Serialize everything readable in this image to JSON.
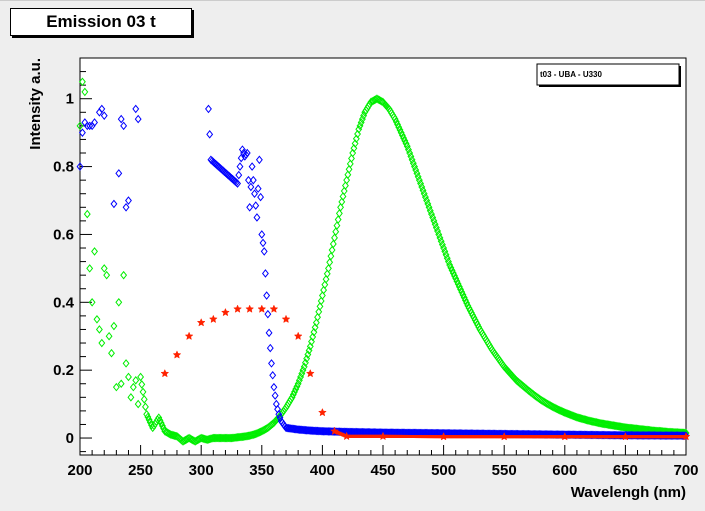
{
  "title": "Emission 03 t",
  "legend": {
    "text": "t03 - UBA - U330"
  },
  "colors": {
    "green": "#00ee00",
    "blue": "#0000ff",
    "red": "#ff2200",
    "background": "#eeeeee",
    "plot_bg": "#ffffff"
  },
  "chart_data": {
    "type": "scatter",
    "title": "Emission 03 t",
    "xlabel": "Wavelengh (nm)",
    "ylabel": "Intensity a.u.",
    "xlim": [
      200,
      700
    ],
    "ylim": [
      -0.05,
      1.12
    ],
    "x_ticks": [
      200,
      250,
      300,
      350,
      400,
      450,
      500,
      550,
      600,
      650,
      700
    ],
    "x_tick_labels": [
      "200",
      "250",
      "300",
      "350",
      "400",
      "450",
      "500",
      "550",
      "600",
      "650",
      "700"
    ],
    "y_ticks": [
      0,
      0.2,
      0.4,
      0.6,
      0.8,
      1.0
    ],
    "y_tick_labels": [
      "0",
      "0.2",
      "0.4",
      "0.6",
      "0.8",
      "1"
    ],
    "legend_placement": "top-right",
    "series": [
      {
        "name": "t03 - UBA - U330",
        "color": "#00ee00",
        "marker": "diamond",
        "x": [
          200,
          202,
          204,
          206,
          208,
          210,
          212,
          214,
          216,
          218,
          220,
          222,
          224,
          226,
          228,
          230,
          232,
          234,
          236,
          238,
          240,
          242,
          244,
          246,
          248,
          250,
          255,
          260,
          265,
          270,
          275,
          280,
          285,
          290,
          295,
          300,
          305,
          310,
          315,
          320,
          325,
          330,
          335,
          340,
          345,
          350,
          355,
          360,
          365,
          370,
          375,
          380,
          385,
          390,
          395,
          400,
          405,
          410,
          415,
          420,
          425,
          430,
          435,
          440,
          445,
          450,
          455,
          460,
          465,
          470,
          475,
          480,
          485,
          490,
          495,
          500,
          505,
          510,
          515,
          520,
          525,
          530,
          535,
          540,
          545,
          550,
          555,
          560,
          565,
          570,
          575,
          580,
          585,
          590,
          595,
          600,
          605,
          610,
          615,
          620,
          625,
          630,
          635,
          640,
          645,
          650,
          655,
          660,
          665,
          670,
          675,
          680,
          685,
          690,
          695,
          700
        ],
        "y": [
          0.92,
          1.05,
          1.02,
          0.66,
          0.5,
          0.4,
          0.55,
          0.35,
          0.32,
          0.28,
          0.5,
          0.48,
          0.3,
          0.25,
          0.33,
          0.15,
          0.4,
          0.16,
          0.48,
          0.22,
          0.18,
          0.12,
          0.15,
          0.17,
          0.1,
          0.18,
          0.07,
          0.03,
          0.06,
          0.02,
          0.01,
          0.005,
          -0.01,
          0.0,
          -0.01,
          0.0,
          -0.005,
          0.0,
          0.0,
          0.0,
          0.0,
          0.002,
          0.004,
          0.007,
          0.012,
          0.02,
          0.03,
          0.045,
          0.065,
          0.09,
          0.12,
          0.16,
          0.21,
          0.27,
          0.34,
          0.42,
          0.5,
          0.59,
          0.68,
          0.76,
          0.84,
          0.91,
          0.96,
          0.99,
          1.0,
          0.99,
          0.97,
          0.94,
          0.9,
          0.86,
          0.81,
          0.76,
          0.71,
          0.66,
          0.61,
          0.56,
          0.51,
          0.47,
          0.43,
          0.39,
          0.355,
          0.32,
          0.29,
          0.26,
          0.235,
          0.21,
          0.19,
          0.17,
          0.155,
          0.14,
          0.126,
          0.113,
          0.102,
          0.092,
          0.083,
          0.075,
          0.068,
          0.061,
          0.056,
          0.051,
          0.047,
          0.043,
          0.04,
          0.037,
          0.034,
          0.031,
          0.029,
          0.027,
          0.025,
          0.023,
          0.021,
          0.02,
          0.018,
          0.017,
          0.016,
          0.015
        ]
      },
      {
        "name": "",
        "color": "#0000ff",
        "marker": "diamond",
        "x": [
          200,
          202,
          204,
          206,
          208,
          210,
          212,
          216,
          218,
          220,
          228,
          232,
          234,
          236,
          238,
          240,
          246,
          248,
          306,
          308,
          330,
          334,
          336,
          338,
          340,
          342,
          344,
          346,
          348,
          350,
          352,
          354,
          356,
          358,
          360,
          362,
          364,
          366,
          368,
          370,
          380,
          390,
          400,
          420,
          450,
          500,
          550,
          600,
          650,
          700
        ],
        "y": [
          0.8,
          0.9,
          0.93,
          0.92,
          0.92,
          0.92,
          0.93,
          0.96,
          0.97,
          0.95,
          0.69,
          0.78,
          0.94,
          0.92,
          0.68,
          0.7,
          0.97,
          0.94,
          0.97,
          0.82,
          0.75,
          0.85,
          0.83,
          0.84,
          0.68,
          0.8,
          0.72,
          0.65,
          0.82,
          0.6,
          0.55,
          0.42,
          0.31,
          0.22,
          0.15,
          0.1,
          0.07,
          0.05,
          0.04,
          0.03,
          0.025,
          0.022,
          0.02,
          0.018,
          0.016,
          0.014,
          0.012,
          0.01,
          0.008,
          0.007
        ]
      },
      {
        "name": "",
        "color": "#ff2200",
        "marker": "star",
        "x": [
          270,
          280,
          290,
          300,
          310,
          320,
          330,
          340,
          350,
          360,
          370,
          380,
          390,
          400,
          410,
          420,
          450,
          500,
          550,
          600,
          650,
          700
        ],
        "y": [
          0.19,
          0.245,
          0.3,
          0.34,
          0.35,
          0.37,
          0.38,
          0.38,
          0.38,
          0.38,
          0.35,
          0.3,
          0.19,
          0.075,
          0.02,
          0.005,
          0.005,
          0.004,
          0.004,
          0.004,
          0.004,
          0.004
        ]
      }
    ]
  }
}
